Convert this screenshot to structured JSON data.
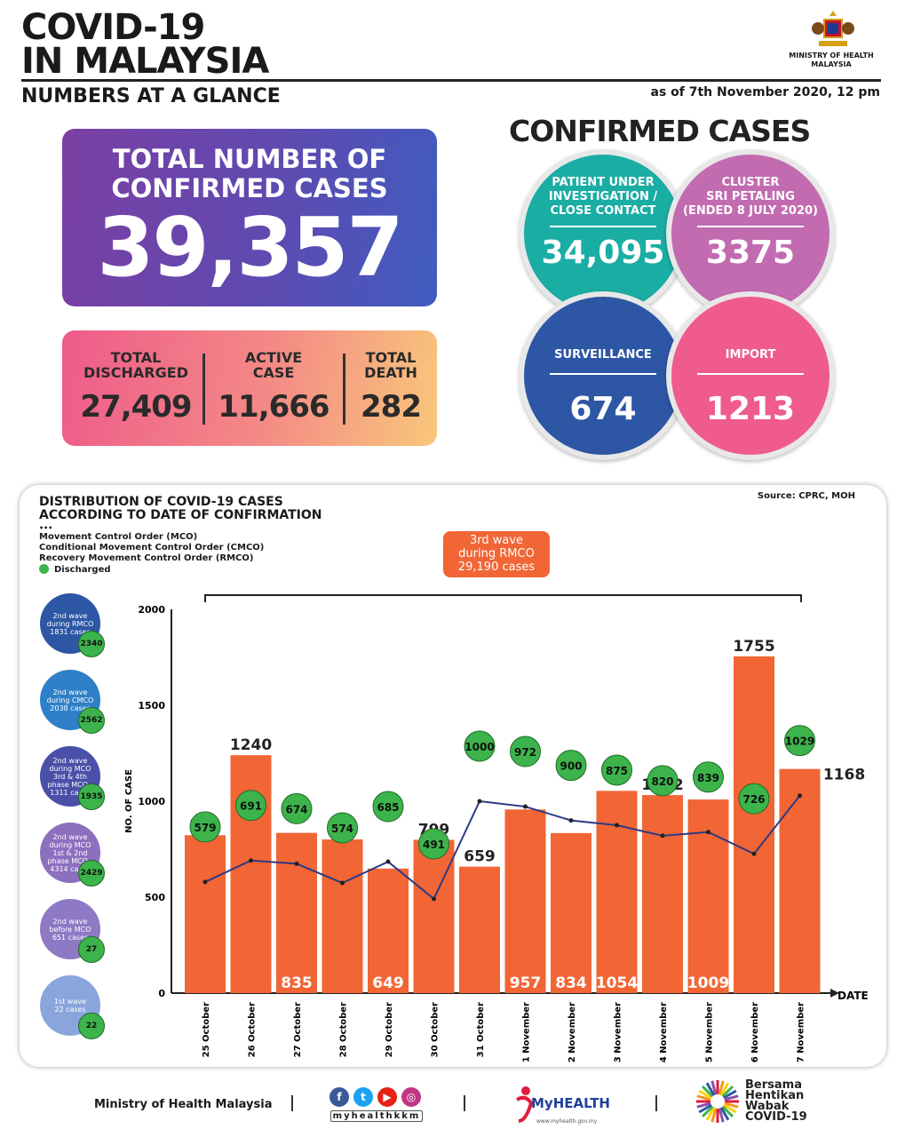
{
  "header": {
    "title_line1": "COVID-19",
    "title_line2": "IN MALAYSIA",
    "subtitle": "NUMBERS AT A GLANCE",
    "as_of": "as of 7th November 2020, 12 pm",
    "ministry_line1": "MINISTRY OF HEALTH",
    "ministry_line2": "MALAYSIA"
  },
  "total": {
    "label_line1": "TOTAL NUMBER OF",
    "label_line2": "CONFIRMED CASES",
    "value": "39,357"
  },
  "stats": [
    {
      "label_line1": "TOTAL",
      "label_line2": "DISCHARGED",
      "value": "27,409"
    },
    {
      "label_line1": "ACTIVE",
      "label_line2": "CASE",
      "value": "11,666"
    },
    {
      "label_line1": "TOTAL",
      "label_line2": "DEATH",
      "value": "282"
    }
  ],
  "confirmed": {
    "title": "CONFIRMED CASES",
    "circles": [
      {
        "label_line1": "PATIENT UNDER",
        "label_line2": "INVESTIGATION /",
        "label_line3": "CLOSE CONTACT",
        "value": "34,095",
        "color": "#1aada3"
      },
      {
        "label_line1": "CLUSTER",
        "label_line2": "SRI PETALING",
        "label_line3": "(ENDED 8 JULY 2020)",
        "value": "3375",
        "color": "#c26bb0"
      },
      {
        "label_line1": "SURVEILLANCE",
        "label_line2": "",
        "label_line3": "",
        "value": "674",
        "color": "#2d57a4"
      },
      {
        "label_line1": "IMPORT",
        "label_line2": "",
        "label_line3": "",
        "value": "1213",
        "color": "#ef5b8e"
      }
    ]
  },
  "distribution": {
    "title_line1": "DISTRIBUTION OF COVID-19 CASES",
    "title_line2": "ACCORDING TO DATE OF CONFIRMATION",
    "source": "Source: CPRC, MOH",
    "legend": {
      "dots": "•••",
      "mco": "Movement Control Order (MCO)",
      "cmco": "Conditional Movement Control Order (CMCO)",
      "rmco": "Recovery Movement Control Order (RMCO)",
      "discharged": "Discharged"
    },
    "wave3": {
      "line1": "3rd wave",
      "line2": "during RMCO",
      "line3": "29,190 cases"
    },
    "waves": [
      {
        "l1": "2nd wave",
        "l2": "during RMCO",
        "l3": "1831 cases",
        "l4": "",
        "l5": "",
        "discharged": "2340",
        "color": "#2d57a4"
      },
      {
        "l1": "2nd wave",
        "l2": "during CMCO",
        "l3": "2038 cases",
        "l4": "",
        "l5": "",
        "discharged": "2562",
        "color": "#2f80c9"
      },
      {
        "l1": "2nd wave",
        "l2": "during MCO",
        "l3": "3rd & 4th",
        "l4": "phase MCO -",
        "l5": "1311 cases",
        "discharged": "1935",
        "color": "#4a4fa8"
      },
      {
        "l1": "2nd wave",
        "l2": "during MCO",
        "l3": "1st & 2nd",
        "l4": "phase MCO -",
        "l5": "4314 cases",
        "discharged": "2429",
        "color": "#8d6fbf"
      },
      {
        "l1": "2nd wave",
        "l2": "before MCO",
        "l3": "651 cases",
        "l4": "",
        "l5": "",
        "discharged": "27",
        "color": "#8e79c4"
      },
      {
        "l1": "1st wave",
        "l2": "22 cases",
        "l3": "",
        "l4": "",
        "l5": "",
        "discharged": "22",
        "color": "#8aa5dc"
      }
    ]
  },
  "chart_data": {
    "type": "bar",
    "categories": [
      "25 October",
      "26 October",
      "27 October",
      "28 October",
      "29 October",
      "30 October",
      "31 October",
      "1 November",
      "2 November",
      "3 November",
      "4 November",
      "5 November",
      "6 November",
      "7 November"
    ],
    "series": [
      {
        "values": [
          823,
          1240,
          835,
          801,
          649,
          799,
          659,
          957,
          834,
          1054,
          1032,
          1009,
          1755,
          1168
        ],
        "color": "#f26535"
      },
      {
        "name": "Discharged",
        "type": "line",
        "values": [
          579,
          691,
          674,
          574,
          685,
          491,
          1000,
          972,
          900,
          875,
          820,
          839,
          726,
          1029
        ],
        "color": "#2b3a84"
      }
    ],
    "bar_label_inside": [
      false,
      false,
      true,
      false,
      true,
      false,
      false,
      true,
      true,
      true,
      false,
      true,
      false,
      false
    ],
    "ylabel": "NO. OF CASE",
    "xlabel": "DATE",
    "yticks": [
      0,
      500,
      1000,
      1500,
      2000
    ],
    "ylim": [
      0,
      2000
    ]
  },
  "footer": {
    "ministry": "Ministry of Health Malaysia",
    "social_handle": "myhealthkkm",
    "myhealth": "MyHEALTH",
    "myhealth_url": "www.myhealth.gov.my",
    "campaign_line1": "Bersama",
    "campaign_line2": "Hentikan",
    "campaign_line3": "Wabak",
    "campaign_line4": "COVID-19"
  }
}
